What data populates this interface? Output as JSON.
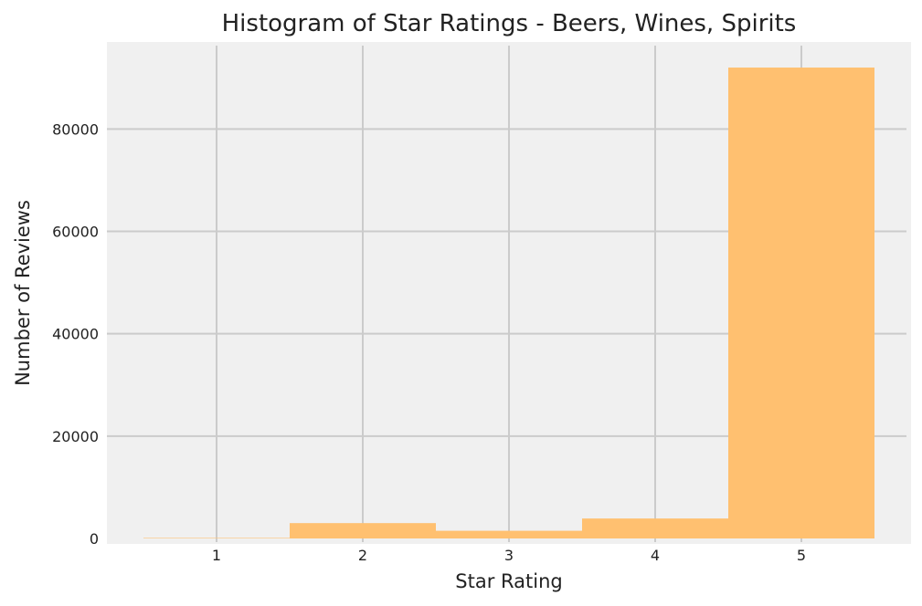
{
  "chart_data": {
    "type": "bar",
    "title": "Histogram of Star Ratings - Beers, Wines, Spirits",
    "xlabel": "Star Rating",
    "ylabel": "Number of Reviews",
    "categories": [
      "1",
      "2",
      "3",
      "4",
      "5"
    ],
    "x": [
      1,
      2,
      3,
      4,
      5
    ],
    "values": [
      100,
      3000,
      1500,
      3900,
      92000
    ],
    "xlim": [
      0.25,
      5.75
    ],
    "ylim": [
      0,
      97000
    ],
    "xticks": [
      1,
      2,
      3,
      4,
      5
    ],
    "yticks": [
      0,
      20000,
      40000,
      60000,
      80000
    ],
    "ytick_labels": [
      "0",
      "20000",
      "40000",
      "60000",
      "80000"
    ],
    "grid": true,
    "bar_color": "#ffc070",
    "background_color": "#f0f0f0",
    "grid_color": "#cbcbcb"
  }
}
